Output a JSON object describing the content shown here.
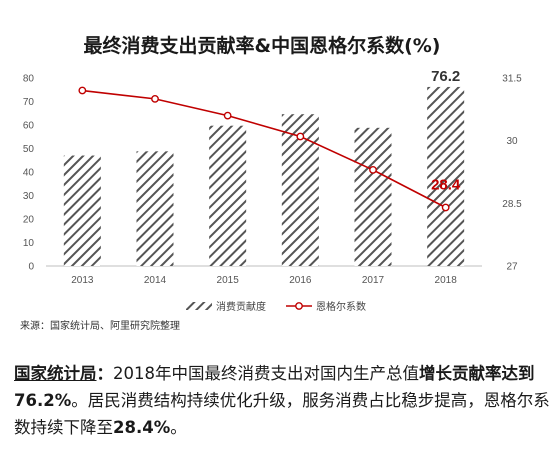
{
  "chart_data": {
    "type": "bar+line",
    "title": "最终消费支出贡献率&中国恩格尔系数(%)",
    "categories": [
      "2013",
      "2014",
      "2015",
      "2016",
      "2017",
      "2018"
    ],
    "series": [
      {
        "name": "消费贡献度",
        "kind": "bar",
        "axis": "left",
        "values": [
          47,
          48.8,
          59.7,
          64.6,
          58.8,
          76.2
        ]
      },
      {
        "name": "恩格尔系数",
        "kind": "line",
        "axis": "right",
        "values": [
          31.2,
          31.0,
          30.6,
          30.1,
          29.3,
          28.4
        ],
        "color": "#c00000"
      }
    ],
    "y_left": {
      "ticks": [
        "0",
        "10",
        "20",
        "30",
        "40",
        "50",
        "60",
        "70",
        "80"
      ],
      "lim": [
        0,
        80
      ]
    },
    "y_right": {
      "ticks": [
        "27",
        "28.5",
        "30",
        "31.5"
      ],
      "lim": [
        27,
        31.5
      ]
    },
    "annotations": [
      {
        "series": 0,
        "index": 5,
        "text": "76.2",
        "color": "#333333"
      },
      {
        "series": 1,
        "index": 5,
        "text": "28.4",
        "color": "#c00000"
      }
    ],
    "legend": "bottom",
    "grid": false
  },
  "source": "来源：国家统计局、阿里研究院整理",
  "caption": {
    "lead": "国家统计局",
    "colon": "：",
    "part1": "2018年中国最终消费支出对国内生产总值",
    "bold1": "增长贡献率达到76.2%",
    "part2": "。居民消费结构持续优化升级，服务消费占比稳步提高，恩格尔系数持续下降至",
    "bold2": "28.4%",
    "end": "。"
  }
}
